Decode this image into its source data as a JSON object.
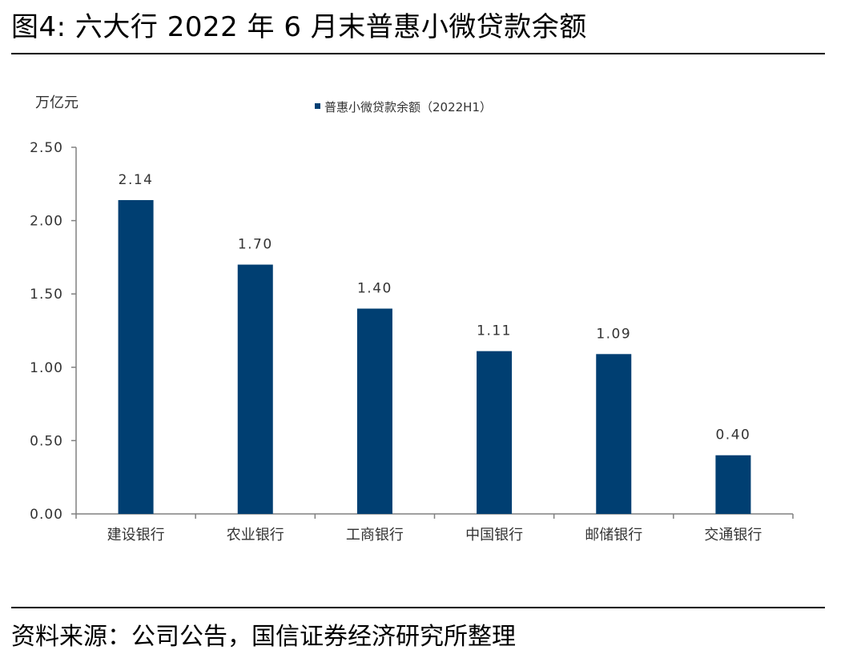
{
  "figure": {
    "title": "图4: 六大行 2022 年 6 月末普惠小微贷款余额",
    "source": "资料来源：公司公告，国信证券经济研究所整理"
  },
  "colors": {
    "bar": "#003f72",
    "axis": "#808080",
    "text": "#333333"
  },
  "chart_data": {
    "type": "bar",
    "title": "",
    "unit_label": "万亿元",
    "xlabel": "",
    "ylabel": "万亿元",
    "categories": [
      "建设银行",
      "农业银行",
      "工商银行",
      "中国银行",
      "邮储银行",
      "交通银行"
    ],
    "series": [
      {
        "name": "普惠小微贷款余额（2022H1）",
        "values": [
          2.14,
          1.7,
          1.4,
          1.11,
          1.09,
          0.4
        ],
        "data_labels": [
          "2.14",
          "1.70",
          "1.40",
          "1.11",
          "1.09",
          "0.40"
        ]
      }
    ],
    "ylim": [
      0,
      2.5
    ],
    "yticks": [
      0,
      0.5,
      1.0,
      1.5,
      2.0,
      2.5
    ],
    "ytick_labels": [
      "0.00",
      "0.50",
      "1.00",
      "1.50",
      "2.00",
      "2.50"
    ],
    "grid": false,
    "legend_position": "top-center"
  }
}
